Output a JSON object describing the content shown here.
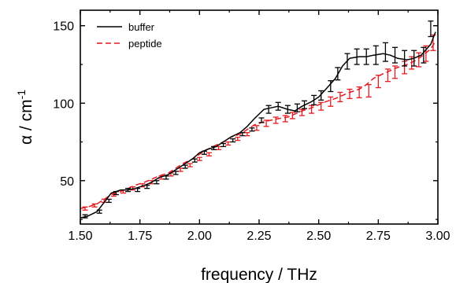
{
  "chart_data": {
    "type": "line",
    "xlabel": "frequency / THz",
    "ylabel": "α / cm",
    "ylabel_superscript": "-1",
    "xlim": [
      1.5,
      3.0
    ],
    "ylim": [
      22,
      160
    ],
    "xticks": [
      1.5,
      1.75,
      2.0,
      2.25,
      2.5,
      2.75,
      3.0
    ],
    "xtick_labels": [
      "1.50",
      "1.75",
      "2.00",
      "2.25",
      "2.50",
      "2.75",
      "3.00"
    ],
    "yticks": [
      50,
      100,
      150
    ],
    "ytick_labels": [
      "50",
      "100",
      "150"
    ],
    "grid": false,
    "legend_position": "top-left",
    "series": [
      {
        "name": "buffer",
        "color": "#000000",
        "dash": "solid",
        "x": [
          1.5,
          1.53,
          1.57,
          1.6,
          1.63,
          1.67,
          1.7,
          1.73,
          1.77,
          1.8,
          1.83,
          1.87,
          1.9,
          1.93,
          1.97,
          2.0,
          2.03,
          2.07,
          2.1,
          2.13,
          2.17,
          2.2,
          2.23,
          2.27,
          2.3,
          2.33,
          2.37,
          2.4,
          2.43,
          2.47,
          2.5,
          2.53,
          2.57,
          2.6,
          2.63,
          2.67,
          2.7,
          2.73,
          2.77,
          2.8,
          2.83,
          2.87,
          2.9,
          2.93,
          2.97,
          2.99
        ],
        "y": [
          26,
          27,
          30,
          36,
          42,
          44,
          44,
          45,
          47,
          49,
          52,
          54,
          57,
          60,
          64,
          68,
          70,
          72,
          75,
          78,
          81,
          85,
          90,
          96,
          97,
          98,
          96,
          95,
          98,
          101,
          104,
          109,
          116,
          124,
          129,
          130,
          130,
          131,
          132,
          131,
          129,
          128,
          129,
          131,
          138,
          146
        ],
        "error_x": [
          1.52,
          1.58,
          1.62,
          1.65,
          1.7,
          1.74,
          1.78,
          1.82,
          1.86,
          1.9,
          1.94,
          1.98,
          2.02,
          2.06,
          2.1,
          2.14,
          2.18,
          2.22,
          2.26,
          2.29,
          2.33,
          2.37,
          2.41,
          2.44,
          2.48,
          2.51,
          2.55,
          2.58,
          2.62,
          2.66,
          2.7,
          2.74,
          2.78,
          2.82,
          2.86,
          2.9,
          2.94,
          2.97
        ],
        "error_y": [
          27,
          30,
          37,
          42,
          44,
          44,
          46,
          49,
          52,
          55,
          59,
          63,
          68,
          71,
          73,
          76,
          80,
          83,
          89,
          96,
          98,
          96,
          97,
          99,
          102,
          105,
          111,
          119,
          127,
          130,
          130,
          131,
          133,
          131,
          129,
          129,
          131,
          148
        ],
        "error_pm": [
          1,
          1,
          1,
          1,
          1,
          1,
          1,
          1,
          1,
          1,
          1,
          1,
          1,
          1,
          1,
          1,
          1,
          1,
          1.5,
          2.5,
          2.5,
          2.5,
          2.5,
          2.5,
          3,
          3,
          3.5,
          4,
          5,
          5,
          5,
          6,
          6,
          5,
          5,
          5,
          5,
          5
        ]
      },
      {
        "name": "peptide",
        "color": "#e8191f",
        "dash": "dashed",
        "x": [
          1.5,
          1.53,
          1.57,
          1.6,
          1.63,
          1.67,
          1.7,
          1.73,
          1.77,
          1.8,
          1.83,
          1.87,
          1.9,
          1.93,
          1.97,
          2.0,
          2.03,
          2.07,
          2.1,
          2.13,
          2.17,
          2.2,
          2.23,
          2.27,
          2.3,
          2.33,
          2.37,
          2.4,
          2.43,
          2.47,
          2.5,
          2.53,
          2.57,
          2.6,
          2.63,
          2.67,
          2.7,
          2.73,
          2.77,
          2.8,
          2.83,
          2.87,
          2.9,
          2.93,
          2.97,
          2.99
        ],
        "y": [
          32,
          33,
          35,
          38,
          41,
          43,
          45,
          47,
          49,
          51,
          53,
          55,
          58,
          61,
          64,
          67,
          70,
          73,
          75,
          78,
          80,
          83,
          86,
          88,
          89,
          90,
          91,
          93,
          95,
          97,
          99,
          101,
          103,
          105,
          107,
          109,
          112,
          116,
          119,
          121,
          123,
          125,
          127,
          130,
          135,
          140
        ],
        "error_x": [
          1.52,
          1.56,
          1.6,
          1.64,
          1.68,
          1.72,
          1.76,
          1.8,
          1.84,
          1.88,
          1.92,
          1.96,
          2.0,
          2.04,
          2.08,
          2.12,
          2.16,
          2.2,
          2.24,
          2.28,
          2.32,
          2.36,
          2.39,
          2.43,
          2.47,
          2.51,
          2.55,
          2.59,
          2.63,
          2.67,
          2.71,
          2.75,
          2.79,
          2.82,
          2.86,
          2.89,
          2.92,
          2.95,
          2.98
        ],
        "error_y": [
          32,
          34,
          37,
          41,
          43,
          45,
          47,
          49,
          52,
          54,
          57,
          60,
          64,
          67,
          71,
          74,
          77,
          80,
          84,
          87,
          89,
          90,
          92,
          94,
          96,
          98,
          101,
          104,
          106,
          107,
          108,
          114,
          118,
          120,
          123,
          126,
          128,
          132,
          139
        ],
        "error_pm": [
          1,
          1,
          1,
          1,
          1,
          1,
          1,
          1,
          1,
          1,
          1,
          1,
          1,
          1,
          1,
          1,
          1,
          1,
          1.5,
          2,
          2,
          2,
          2,
          2,
          2.5,
          2.5,
          3,
          3,
          3,
          3.5,
          4,
          4,
          4,
          4,
          4,
          4,
          4.5,
          5,
          5
        ]
      }
    ]
  }
}
